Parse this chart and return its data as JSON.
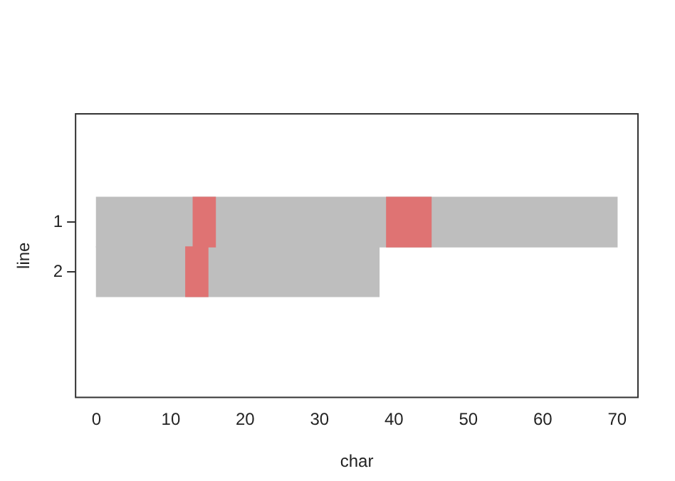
{
  "chart_data": {
    "type": "bar",
    "orientation": "horizontal",
    "xlabel": "char",
    "ylabel": "line",
    "categories": [
      "1",
      "2"
    ],
    "series": [
      {
        "color": "#bebebe",
        "base": [
          0,
          0
        ],
        "values": [
          70,
          38
        ]
      },
      {
        "color": "#df7373",
        "base": [
          13,
          12
        ],
        "values": [
          3,
          3
        ]
      },
      {
        "color": "#df7373",
        "base": [
          39,
          null
        ],
        "values": [
          6,
          null
        ]
      }
    ],
    "xlim": [
      -2.8,
      72.8
    ],
    "xticks": [
      0,
      10,
      20,
      30,
      40,
      50,
      60,
      70
    ],
    "grid": false,
    "legend": false
  }
}
